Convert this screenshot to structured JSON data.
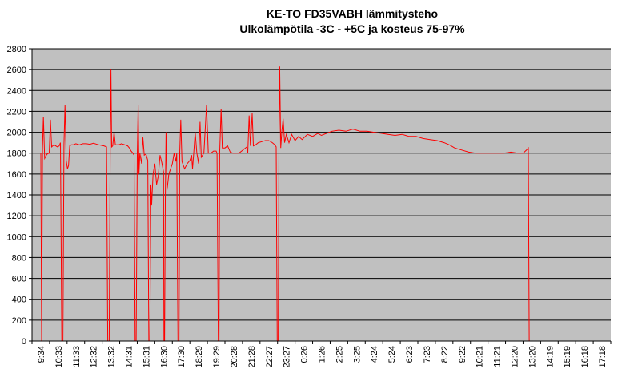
{
  "chart_data": {
    "type": "line",
    "title_line1": "KE-TO FD35VABH lämmitysteho",
    "title_line2": "Ulkolämpötila  -3C - +5C ja kosteus 75-97%",
    "xlabel": "",
    "ylabel": "",
    "ylim": [
      0,
      2800
    ],
    "y_ticks": [
      0,
      200,
      400,
      600,
      800,
      1000,
      1200,
      1400,
      1600,
      1800,
      2000,
      2200,
      2400,
      2600,
      2800
    ],
    "x_tick_labels": [
      "9:34",
      "10:33",
      "11:33",
      "12:32",
      "13:32",
      "14:31",
      "15:31",
      "16:30",
      "17:30",
      "18:29",
      "19:29",
      "20:28",
      "21:28",
      "22:27",
      "23:27",
      "0:26",
      "1:26",
      "2:25",
      "3:25",
      "4:24",
      "5:24",
      "6:23",
      "7:23",
      "8:22",
      "9:22",
      "10:21",
      "11:21",
      "12:20",
      "13:20",
      "14:19",
      "15:19",
      "16:18",
      "17:18"
    ],
    "grid": "horizontal",
    "legend": "none",
    "plot_background": "#c0c0c0",
    "line_color": "#ff0000",
    "series": [
      {
        "values": [
          [
            0.0,
            1800
          ],
          [
            0.05,
            0
          ],
          [
            0.1,
            1850
          ],
          [
            0.15,
            2150
          ],
          [
            0.22,
            1750
          ],
          [
            0.35,
            1790
          ],
          [
            0.48,
            1800
          ],
          [
            0.55,
            2120
          ],
          [
            0.62,
            1860
          ],
          [
            0.75,
            1880
          ],
          [
            0.95,
            1860
          ],
          [
            1.05,
            1870
          ],
          [
            1.12,
            1900
          ],
          [
            1.2,
            0
          ],
          [
            1.26,
            0
          ],
          [
            1.32,
            1880
          ],
          [
            1.38,
            2260
          ],
          [
            1.45,
            1730
          ],
          [
            1.52,
            1650
          ],
          [
            1.58,
            1680
          ],
          [
            1.65,
            1870
          ],
          [
            1.75,
            1880
          ],
          [
            1.85,
            1880
          ],
          [
            2.0,
            1890
          ],
          [
            2.2,
            1880
          ],
          [
            2.4,
            1890
          ],
          [
            2.6,
            1890
          ],
          [
            2.8,
            1885
          ],
          [
            3.0,
            1895
          ],
          [
            3.3,
            1880
          ],
          [
            3.6,
            1870
          ],
          [
            3.75,
            1860
          ],
          [
            3.82,
            0
          ],
          [
            3.9,
            0
          ],
          [
            3.96,
            1860
          ],
          [
            4.0,
            2600
          ],
          [
            4.04,
            1860
          ],
          [
            4.1,
            1870
          ],
          [
            4.18,
            2000
          ],
          [
            4.25,
            1880
          ],
          [
            4.45,
            1880
          ],
          [
            4.6,
            1890
          ],
          [
            4.8,
            1880
          ],
          [
            4.95,
            1870
          ],
          [
            5.05,
            1850
          ],
          [
            5.15,
            1820
          ],
          [
            5.25,
            1800
          ],
          [
            5.32,
            1780
          ],
          [
            5.38,
            0
          ],
          [
            5.44,
            0
          ],
          [
            5.5,
            1780
          ],
          [
            5.55,
            2260
          ],
          [
            5.6,
            1600
          ],
          [
            5.65,
            1800
          ],
          [
            5.75,
            1700
          ],
          [
            5.82,
            1950
          ],
          [
            5.9,
            1780
          ],
          [
            6.0,
            1790
          ],
          [
            6.1,
            1730
          ],
          [
            6.16,
            0
          ],
          [
            6.22,
            0
          ],
          [
            6.28,
            1500
          ],
          [
            6.32,
            1300
          ],
          [
            6.4,
            1600
          ],
          [
            6.5,
            1700
          ],
          [
            6.6,
            1500
          ],
          [
            6.7,
            1580
          ],
          [
            6.8,
            1780
          ],
          [
            6.9,
            1710
          ],
          [
            7.0,
            1620
          ],
          [
            7.02,
            0
          ],
          [
            7.06,
            0
          ],
          [
            7.1,
            1350
          ],
          [
            7.14,
            2000
          ],
          [
            7.2,
            1450
          ],
          [
            7.3,
            1600
          ],
          [
            7.4,
            1650
          ],
          [
            7.5,
            1700
          ],
          [
            7.6,
            1800
          ],
          [
            7.7,
            1720
          ],
          [
            7.75,
            1800
          ],
          [
            7.82,
            0
          ],
          [
            7.88,
            0
          ],
          [
            7.92,
            1800
          ],
          [
            7.98,
            2120
          ],
          [
            8.05,
            1720
          ],
          [
            8.2,
            1650
          ],
          [
            8.35,
            1700
          ],
          [
            8.5,
            1730
          ],
          [
            8.6,
            1780
          ],
          [
            8.65,
            1650
          ],
          [
            8.72,
            1800
          ],
          [
            8.8,
            2000
          ],
          [
            8.9,
            1800
          ],
          [
            9.0,
            1700
          ],
          [
            9.08,
            2100
          ],
          [
            9.15,
            1760
          ],
          [
            9.3,
            1800
          ],
          [
            9.45,
            2260
          ],
          [
            9.55,
            1800
          ],
          [
            9.7,
            1800
          ],
          [
            9.85,
            1820
          ],
          [
            10.0,
            1820
          ],
          [
            10.05,
            1800
          ],
          [
            10.12,
            0
          ],
          [
            10.16,
            0
          ],
          [
            10.2,
            1800
          ],
          [
            10.28,
            2220
          ],
          [
            10.35,
            1850
          ],
          [
            10.5,
            1850
          ],
          [
            10.65,
            1870
          ],
          [
            10.8,
            1810
          ],
          [
            10.95,
            1800
          ],
          [
            11.1,
            1800
          ],
          [
            11.3,
            1800
          ],
          [
            11.45,
            1820
          ],
          [
            11.6,
            1840
          ],
          [
            11.75,
            1860
          ],
          [
            11.8,
            1800
          ],
          [
            11.88,
            2160
          ],
          [
            11.95,
            1870
          ],
          [
            12.05,
            2180
          ],
          [
            12.12,
            1870
          ],
          [
            12.25,
            1880
          ],
          [
            12.4,
            1900
          ],
          [
            12.6,
            1910
          ],
          [
            12.8,
            1920
          ],
          [
            13.0,
            1920
          ],
          [
            13.2,
            1900
          ],
          [
            13.35,
            1880
          ],
          [
            13.42,
            1860
          ],
          [
            13.48,
            0
          ],
          [
            13.54,
            0
          ],
          [
            13.58,
            1860
          ],
          [
            13.62,
            2630
          ],
          [
            13.68,
            1850
          ],
          [
            13.75,
            2020
          ],
          [
            13.82,
            2130
          ],
          [
            13.9,
            1900
          ],
          [
            14.0,
            1980
          ],
          [
            14.15,
            1900
          ],
          [
            14.3,
            1980
          ],
          [
            14.5,
            1920
          ],
          [
            14.7,
            1960
          ],
          [
            14.9,
            1930
          ],
          [
            15.2,
            1980
          ],
          [
            15.5,
            1960
          ],
          [
            15.8,
            1990
          ],
          [
            16.0,
            1970
          ],
          [
            16.3,
            1990
          ],
          [
            16.6,
            2010
          ],
          [
            17.0,
            2020
          ],
          [
            17.4,
            2010
          ],
          [
            17.8,
            2030
          ],
          [
            18.2,
            2010
          ],
          [
            18.6,
            2010
          ],
          [
            19.0,
            2000
          ],
          [
            19.4,
            1990
          ],
          [
            19.8,
            1980
          ],
          [
            20.2,
            1970
          ],
          [
            20.6,
            1980
          ],
          [
            21.0,
            1960
          ],
          [
            21.4,
            1960
          ],
          [
            21.8,
            1940
          ],
          [
            22.2,
            1930
          ],
          [
            22.6,
            1920
          ],
          [
            23.0,
            1900
          ],
          [
            23.3,
            1880
          ],
          [
            23.6,
            1850
          ],
          [
            24.0,
            1830
          ],
          [
            24.4,
            1810
          ],
          [
            24.8,
            1800
          ],
          [
            25.2,
            1800
          ],
          [
            25.6,
            1800
          ],
          [
            26.0,
            1800
          ],
          [
            26.4,
            1800
          ],
          [
            26.8,
            1810
          ],
          [
            27.2,
            1800
          ],
          [
            27.5,
            1800
          ],
          [
            27.7,
            1830
          ],
          [
            27.8,
            1850
          ],
          [
            27.85,
            0
          ],
          [
            27.95,
            0
          ]
        ]
      }
    ]
  }
}
